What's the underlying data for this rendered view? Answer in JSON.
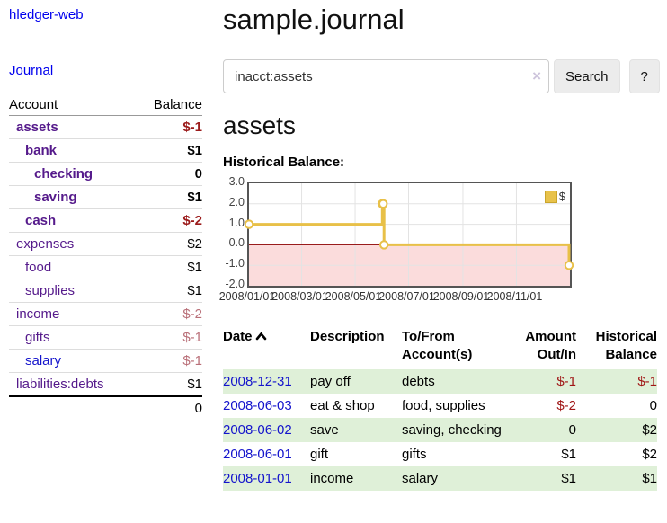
{
  "app": {
    "title": "hledger-web"
  },
  "colors": {
    "link_purple": "#551a8b",
    "link_blue": "#1414cc",
    "negative_strong": "#9b1b1b",
    "negative_soft": "#b96f78",
    "register_negative": "#a01616",
    "stripe_green": "#dff0d8",
    "chart_line": "#e8c048"
  },
  "sidebar": {
    "nav": {
      "journal": "Journal"
    },
    "accounts_table": {
      "headers": {
        "account": "Account",
        "balance": "Balance"
      },
      "rows": [
        {
          "account": "assets",
          "level": 0,
          "bold": true,
          "link_variant": "visited",
          "balance": "$-1",
          "balance_tone": "negative-strong"
        },
        {
          "account": "bank",
          "level": 1,
          "bold": true,
          "link_variant": "visited",
          "balance": "$1",
          "balance_tone": "normal"
        },
        {
          "account": "checking",
          "level": 2,
          "bold": true,
          "link_variant": "visited",
          "balance": "0",
          "balance_tone": "normal"
        },
        {
          "account": "saving",
          "level": 2,
          "bold": true,
          "link_variant": "visited",
          "balance": "$1",
          "balance_tone": "normal"
        },
        {
          "account": "cash",
          "level": 1,
          "bold": true,
          "link_variant": "visited",
          "balance": "$-2",
          "balance_tone": "negative-strong"
        },
        {
          "account": "expenses",
          "level": 0,
          "bold": false,
          "link_variant": "visited",
          "balance": "$2",
          "balance_tone": "normal"
        },
        {
          "account": "food",
          "level": 1,
          "bold": false,
          "link_variant": "visited",
          "balance": "$1",
          "balance_tone": "normal"
        },
        {
          "account": "supplies",
          "level": 1,
          "bold": false,
          "link_variant": "visited",
          "balance": "$1",
          "balance_tone": "normal"
        },
        {
          "account": "income",
          "level": 0,
          "bold": false,
          "link_variant": "visited",
          "balance": "$-2",
          "balance_tone": "negative-soft"
        },
        {
          "account": "gifts",
          "level": 1,
          "bold": false,
          "link_variant": "visited",
          "balance": "$-1",
          "balance_tone": "negative-soft"
        },
        {
          "account": "salary",
          "level": 1,
          "bold": false,
          "link_variant": "unvisited",
          "balance": "$-1",
          "balance_tone": "negative-soft"
        },
        {
          "account": "liabilities:debts",
          "level": 0,
          "bold": false,
          "link_variant": "visited",
          "balance": "$1",
          "balance_tone": "normal"
        }
      ],
      "total": "0"
    }
  },
  "main": {
    "title": "sample.journal",
    "search": {
      "value": "inacct:assets",
      "clear_icon": "×",
      "button": "Search",
      "help_button": "?"
    },
    "account_heading": "assets",
    "chart_label": "Historical Balance:"
  },
  "chart_data": {
    "type": "line",
    "title": "Historical Balance:",
    "steps": true,
    "x_type": "date",
    "x_range": [
      "2008-01-01",
      "2008-12-31"
    ],
    "ylim": [
      -2.0,
      3.0
    ],
    "yticks": [
      3.0,
      2.0,
      1.0,
      0.0,
      -1.0,
      -2.0
    ],
    "xticks": [
      "2008/01/01",
      "2008/03/01",
      "2008/05/01",
      "2008/07/01",
      "2008/09/01",
      "2008/11/01"
    ],
    "series": [
      {
        "name": "$",
        "color": "#e8c048",
        "marker": "open-circle",
        "points": [
          {
            "x": "2008-01-01",
            "y": 1
          },
          {
            "x": "2008-06-01",
            "y": 2
          },
          {
            "x": "2008-06-02",
            "y": 2
          },
          {
            "x": "2008-06-03",
            "y": 0
          },
          {
            "x": "2008-12-31",
            "y": -1
          }
        ]
      }
    ],
    "legend": {
      "position": "top-right",
      "label": "$"
    },
    "negative_region": {
      "below": 0,
      "color": "#fbdcdc",
      "line_color": "#8b0000"
    },
    "grid": true
  },
  "register": {
    "headers": {
      "date": "Date",
      "description": "Description",
      "accounts": "To/From Account(s)",
      "amount": "Amount Out/In",
      "balance": "Historical Balance"
    },
    "sort": "ascending",
    "rows": [
      {
        "date": "2008-12-31",
        "description": "pay off",
        "accounts": "debts",
        "amount": "$-1",
        "amount_negative": true,
        "balance": "$-1",
        "balance_negative": true,
        "striped": true
      },
      {
        "date": "2008-06-03",
        "description": "eat & shop",
        "accounts": "food, supplies",
        "amount": "$-2",
        "amount_negative": true,
        "balance": "0",
        "balance_negative": false,
        "striped": false
      },
      {
        "date": "2008-06-02",
        "description": "save",
        "accounts": "saving, checking",
        "amount": "0",
        "amount_negative": false,
        "balance": "$2",
        "balance_negative": false,
        "striped": true
      },
      {
        "date": "2008-06-01",
        "description": "gift",
        "accounts": "gifts",
        "amount": "$1",
        "amount_negative": false,
        "balance": "$2",
        "balance_negative": false,
        "striped": false
      },
      {
        "date": "2008-01-01",
        "description": "income",
        "accounts": "salary",
        "amount": "$1",
        "amount_negative": false,
        "balance": "$1",
        "balance_negative": false,
        "striped": true
      }
    ]
  }
}
